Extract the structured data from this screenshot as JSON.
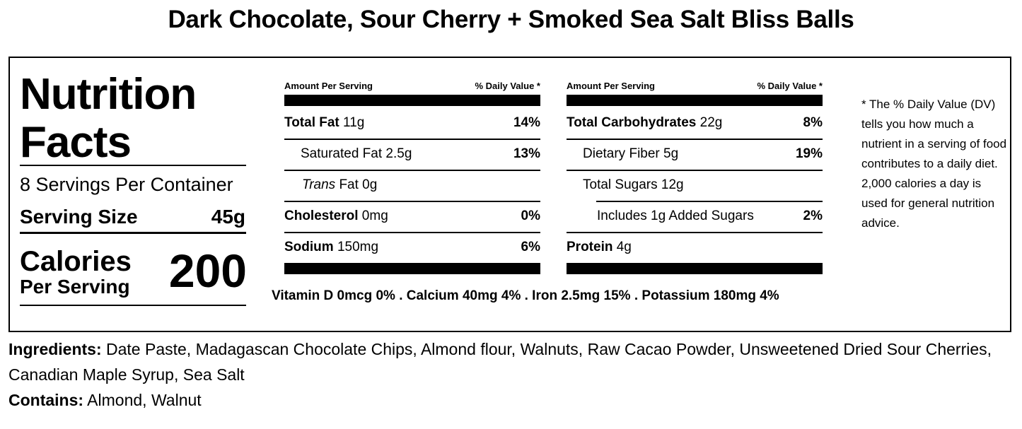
{
  "title": "Dark Chocolate, Sour Cherry + Smoked Sea Salt Bliss Balls",
  "label": {
    "heading": "Nutrition Facts",
    "servings_per_container": "8 Servings Per Container",
    "serving_size_label": "Serving Size",
    "serving_size_value": "45g",
    "calories_label": "Calories",
    "calories_sub": "Per Serving",
    "calories_value": "200"
  },
  "left_column": {
    "amount_header": "Amount Per Serving",
    "dv_header": "% Daily Value *",
    "rows": [
      {
        "bold": "Total Fat",
        "text": " 11g",
        "pct": "14%"
      },
      {
        "bold": "",
        "text": "Saturated Fat 2.5g",
        "pct": "13%"
      },
      {
        "italic": "Trans",
        "text": " Fat 0g",
        "pct": ""
      },
      {
        "bold": "Cholesterol",
        "text": " 0mg",
        "pct": "0%"
      },
      {
        "bold": "Sodium",
        "text": " 150mg",
        "pct": "6%"
      }
    ]
  },
  "right_column": {
    "amount_header": "Amount Per Serving",
    "dv_header": "% Daily Value *",
    "rows": [
      {
        "bold": "Total Carbohydrates",
        "text": " 22g",
        "pct": "8%"
      },
      {
        "bold": "",
        "text": "Dietary Fiber 5g",
        "pct": "19%"
      },
      {
        "bold": "",
        "text": "Total Sugars 12g",
        "pct": ""
      },
      {
        "bold": "",
        "text": "Includes 1g Added Sugars",
        "pct": "2%"
      },
      {
        "bold": "Protein",
        "text": " 4g",
        "pct": ""
      }
    ]
  },
  "vitamins": "Vitamin D 0mcg 0% . Calcium 40mg 4% . Iron 2.5mg 15% . Potassium 180mg 4%",
  "footnote": "* The % Daily Value (DV) tells you how much a nutrient in a serving of food contributes to a daily diet. 2,000 calories a day is used for general nutrition advice.",
  "ingredients_label": "Ingredients:",
  "ingredients_text": " Date Paste, Madagascan Chocolate Chips, Almond flour, Walnuts, Raw Cacao Powder, Unsweetened Dried Sour Cherries, Canadian Maple Syrup, Sea Salt",
  "contains_label": "Contains:",
  "contains_text": " Almond, Walnut"
}
